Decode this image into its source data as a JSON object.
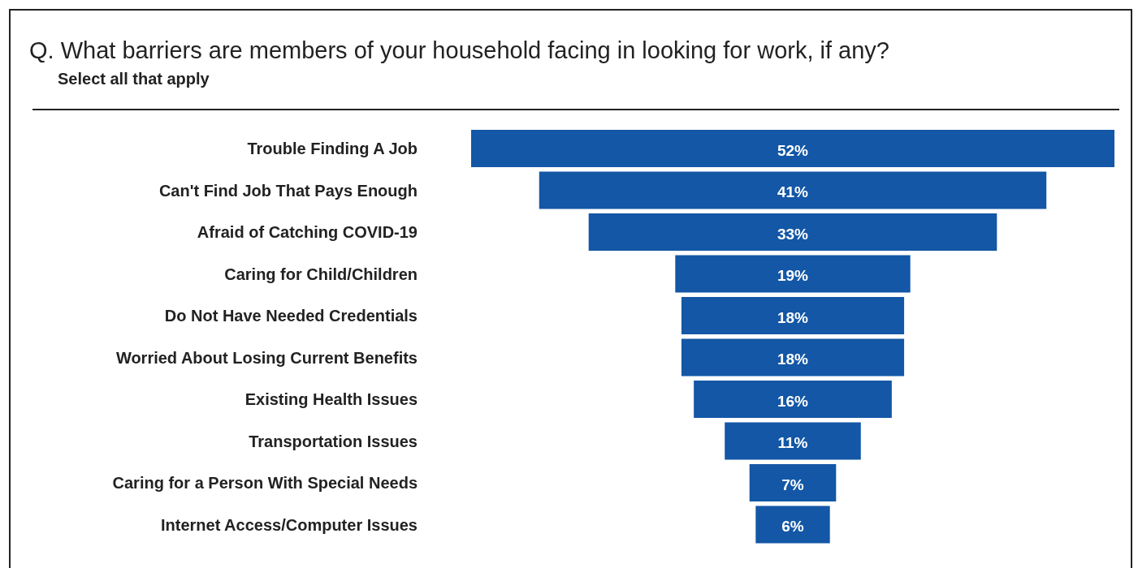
{
  "chart_data": {
    "type": "other",
    "title": "Q. What barriers are members of your household facing in looking for work, if any?",
    "subtitle": "Select all that apply",
    "categories": [
      "Trouble Finding A Job",
      "Can't Find Job That Pays Enough",
      "Afraid of Catching COVID-19",
      "Caring for Child/Children",
      "Do Not Have Needed Credentials",
      "Worried About Losing Current Benefits",
      "Existing Health Issues",
      "Transportation Issues",
      "Caring for a Person With Special Needs",
      "Internet Access/Computer Issues"
    ],
    "values": [
      52,
      41,
      33,
      19,
      18,
      18,
      16,
      11,
      7,
      6
    ],
    "value_labels": [
      "52%",
      "41%",
      "33%",
      "19%",
      "18%",
      "18%",
      "16%",
      "11%",
      "7%",
      "6%"
    ],
    "color": "#1357a6"
  }
}
